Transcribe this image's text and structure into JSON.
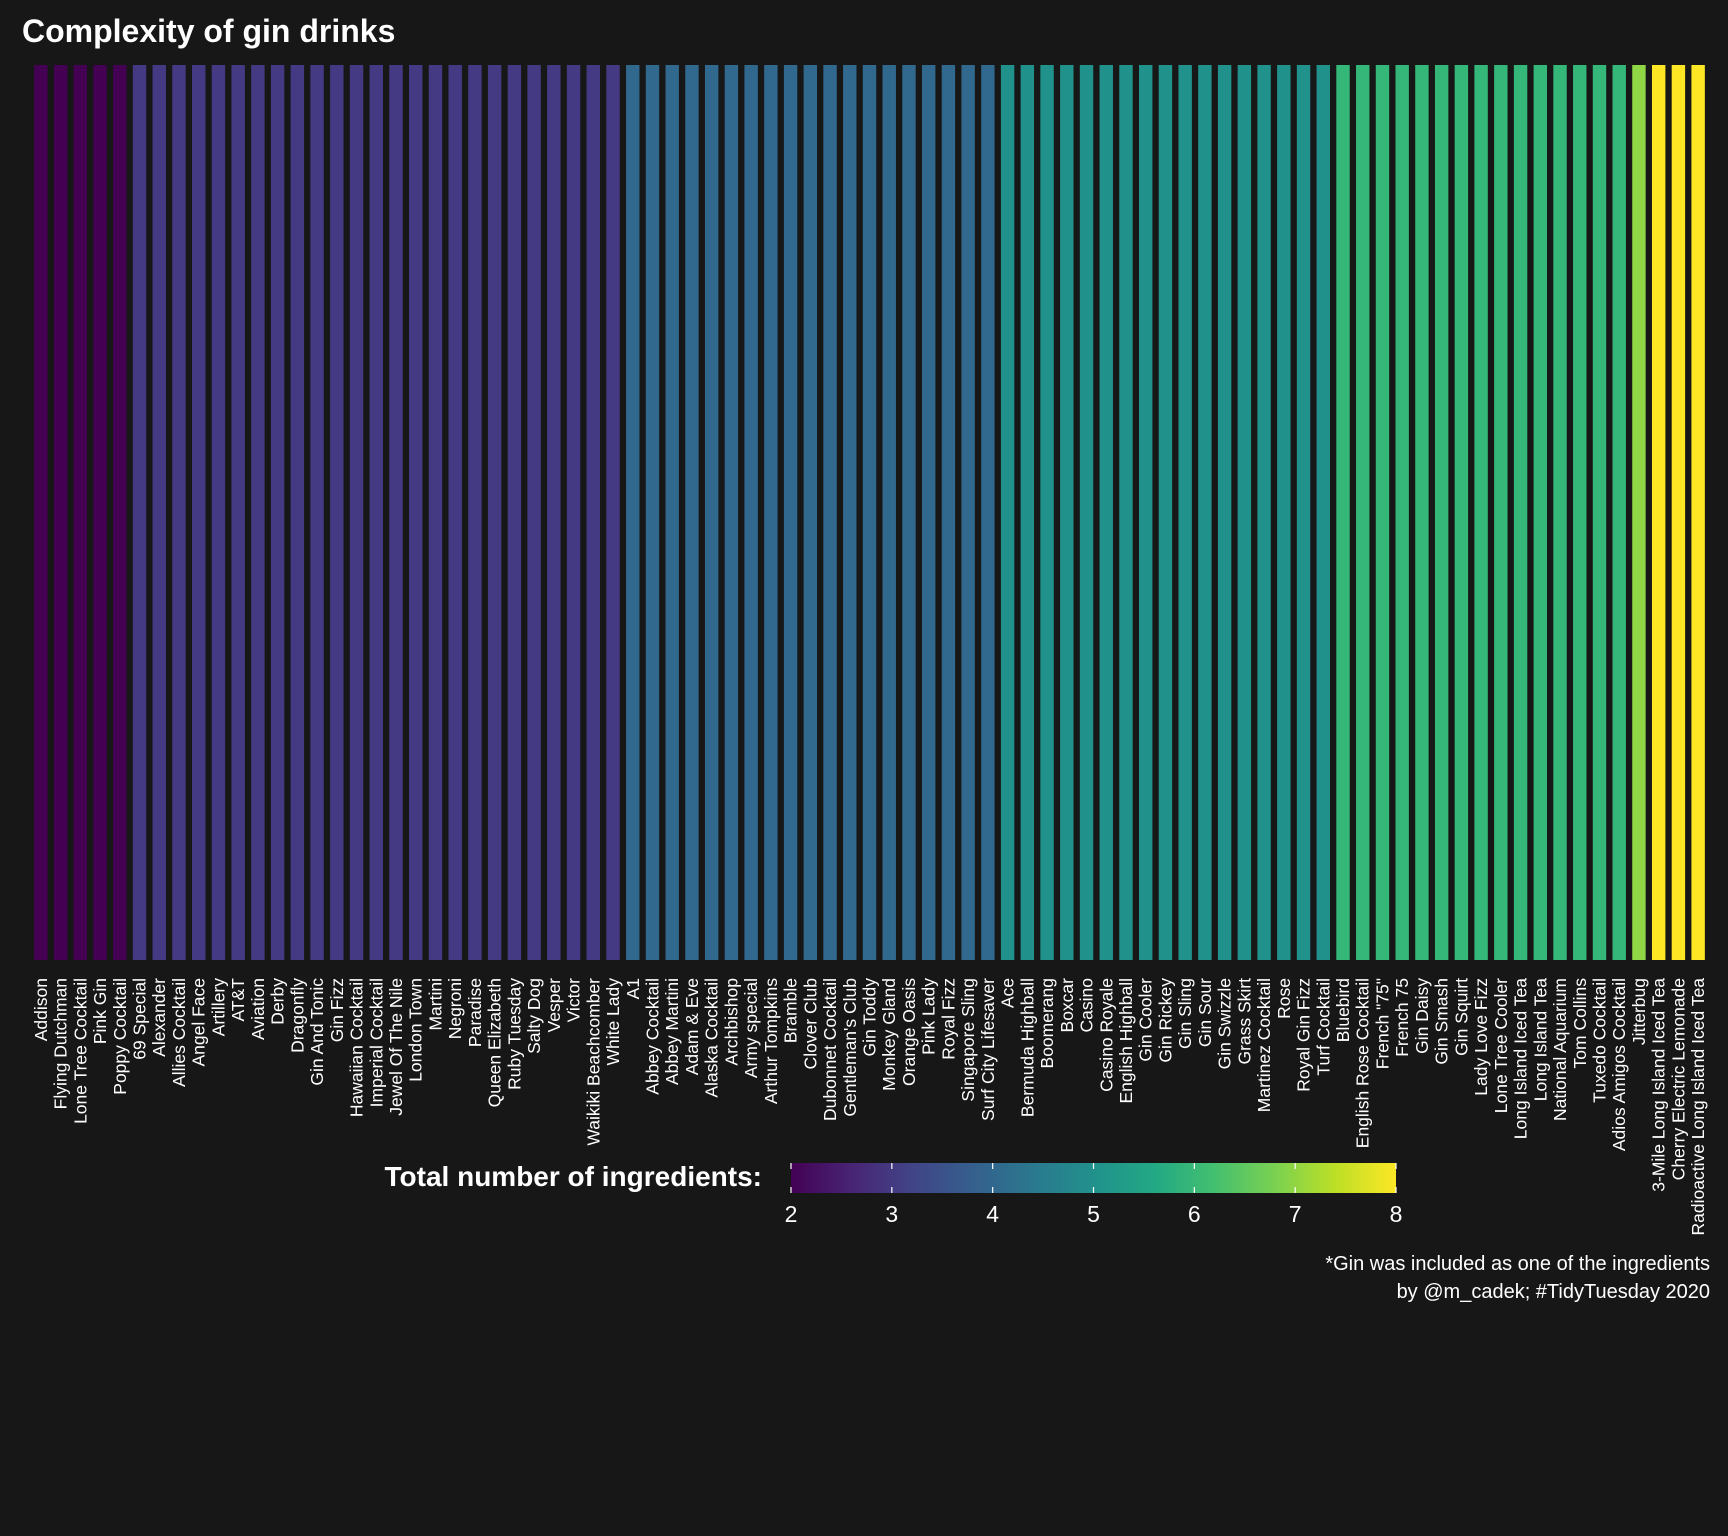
{
  "chart_data": {
    "type": "bar",
    "title": "Complexity of gin drinks",
    "categories": [
      "Addison",
      "Flying Dutchman",
      "Lone Tree Cocktail",
      "Pink Gin",
      "Poppy Cocktail",
      "69 Special",
      "Alexander",
      "Allies Cocktail",
      "Angel Face",
      "Artillery",
      "AT&T",
      "Aviation",
      "Derby",
      "Dragonfly",
      "Gin And Tonic",
      "Gin Fizz",
      "Hawaiian Cocktail",
      "Imperial Cocktail",
      "Jewel Of The Nile",
      "London Town",
      "Martini",
      "Negroni",
      "Paradise",
      "Queen Elizabeth",
      "Ruby Tuesday",
      "Salty Dog",
      "Vesper",
      "Victor",
      "Waikiki Beachcomber",
      "White Lady",
      "A1",
      "Abbey Cocktail",
      "Abbey Martini",
      "Adam & Eve",
      "Alaska Cocktail",
      "Archbishop",
      "Army special",
      "Arthur Tompkins",
      "Bramble",
      "Clover Club",
      "Dubonnet Cocktail",
      "Gentleman's Club",
      "Gin Toddy",
      "Monkey Gland",
      "Orange Oasis",
      "Pink Lady",
      "Royal Fizz",
      "Singapore Sling",
      "Surf City Lifesaver",
      "Ace",
      "Bermuda Highball",
      "Boomerang",
      "Boxcar",
      "Casino",
      "Casino Royale",
      "English Highball",
      "Gin Cooler",
      "Gin Rickey",
      "Gin Sling",
      "Gin Sour",
      "Gin Swizzle",
      "Grass Skirt",
      "Martinez Cocktail",
      "Rose",
      "Royal Gin Fizz",
      "Turf Cocktail",
      "Bluebird",
      "English Rose Cocktail",
      "French \"75\"",
      "French 75",
      "Gin Daisy",
      "Gin Smash",
      "Gin Squirt",
      "Lady Love Fizz",
      "Lone Tree Cooler",
      "Long Island Iced Tea",
      "Long Island Tea",
      "National Aquarium",
      "Tom Collins",
      "Tuxedo Cocktail",
      "Adios Amigos Cocktail",
      "Jitterbug",
      "3-Mile Long Island Iced Tea",
      "Cherry Electric Lemonade",
      "Radioactive Long Island Iced Tea"
    ],
    "values": [
      2,
      2,
      2,
      2,
      2,
      3,
      3,
      3,
      3,
      3,
      3,
      3,
      3,
      3,
      3,
      3,
      3,
      3,
      3,
      3,
      3,
      3,
      3,
      3,
      3,
      3,
      3,
      3,
      3,
      3,
      4,
      4,
      4,
      4,
      4,
      4,
      4,
      4,
      4,
      4,
      4,
      4,
      4,
      4,
      4,
      4,
      4,
      4,
      4,
      5,
      5,
      5,
      5,
      5,
      5,
      5,
      5,
      5,
      5,
      5,
      5,
      5,
      5,
      5,
      5,
      5,
      6,
      6,
      6,
      6,
      6,
      6,
      6,
      6,
      6,
      6,
      6,
      6,
      6,
      6,
      6,
      7,
      8,
      8,
      8
    ],
    "legend": {
      "title": "Total number of ingredients:",
      "ticks": [
        "2",
        "3",
        "4",
        "5",
        "6",
        "7",
        "8"
      ],
      "range": [
        2,
        8
      ],
      "placement": "bottom"
    },
    "colormap": "viridis",
    "colors": {
      "2": "#440154",
      "3": "#443a83",
      "4": "#31688e",
      "5": "#21918c",
      "6": "#35b779",
      "7": "#8fd744",
      "8": "#fde725"
    },
    "caption": [
      "*Gin was included as one of the ingredients",
      "by @m_cadek; #TidyTuesday 2020"
    ],
    "grid": false
  }
}
